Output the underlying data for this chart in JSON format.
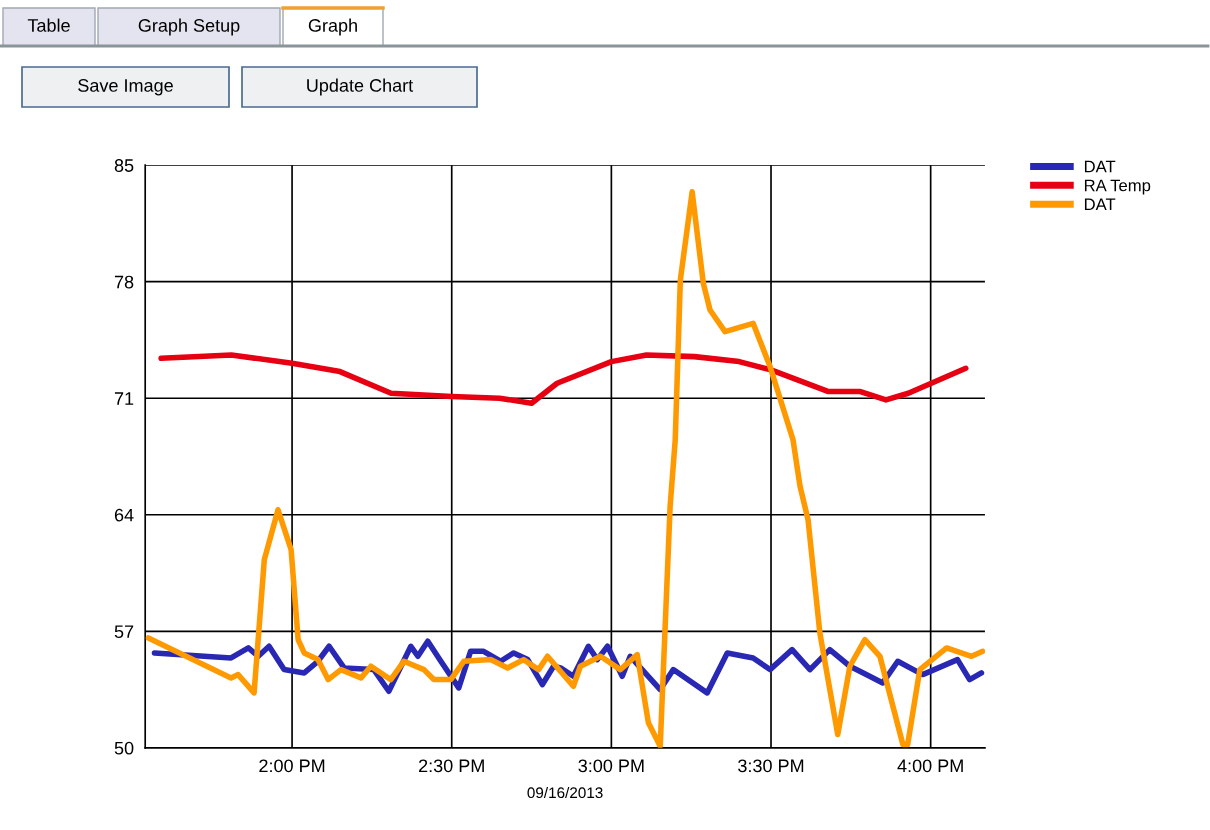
{
  "chart_data": {
    "type": "line",
    "xlabel": "09/16/2013",
    "annotations": [
      "Table",
      "Graph Setup",
      "Graph",
      "Save Image",
      "Update Chart"
    ],
    "xlim": [
      13.54,
      16.17
    ],
    "xticks": [
      {
        "value": 14,
        "label": "2:00 PM"
      },
      {
        "value": 14.5,
        "label": "2:30 PM"
      },
      {
        "value": 15,
        "label": "3:00 PM"
      },
      {
        "value": 15.5,
        "label": "3:30 PM"
      },
      {
        "value": 16,
        "label": "4:00 PM"
      }
    ],
    "ylim": [
      50,
      85
    ],
    "yticks": [
      50,
      57,
      64,
      71,
      78,
      85
    ],
    "grid": true,
    "legend": "top right",
    "marker": "none",
    "line_style": "solid",
    "series": [
      {
        "name": "DAT",
        "color": "#2828b4",
        "x": [
          13.569,
          13.809,
          13.863,
          13.894,
          13.928,
          13.975,
          14.038,
          14.081,
          14.116,
          14.163,
          14.256,
          14.303,
          14.372,
          14.394,
          14.425,
          14.466,
          14.522,
          14.559,
          14.6,
          14.653,
          14.694,
          14.738,
          14.784,
          14.819,
          14.841,
          14.881,
          14.928,
          14.956,
          14.988,
          15.034,
          15.059,
          15.153,
          15.194,
          15.3,
          15.363,
          15.444,
          15.497,
          15.566,
          15.622,
          15.684,
          15.747,
          15.809,
          15.85,
          15.897,
          15.975,
          16.084,
          16.122,
          16.159
        ],
        "values": [
          55.7,
          55.4,
          56.0,
          55.5,
          56.1,
          54.7,
          54.5,
          55.2,
          56.1,
          54.8,
          54.7,
          53.4,
          56.1,
          55.5,
          56.4,
          55.2,
          53.6,
          55.8,
          55.8,
          55.2,
          55.7,
          55.3,
          53.8,
          54.9,
          54.8,
          54.3,
          56.1,
          55.3,
          56.1,
          54.3,
          55.5,
          53.5,
          54.7,
          53.3,
          55.7,
          55.4,
          54.7,
          55.9,
          54.7,
          55.9,
          54.9,
          54.3,
          53.9,
          55.2,
          54.4,
          55.3,
          54.1,
          54.5
        ]
      },
      {
        "name": "RA Temp",
        "color": "#e60012",
        "x": [
          13.59,
          13.81,
          14.0,
          14.15,
          14.31,
          14.5,
          14.65,
          14.75,
          14.83,
          15.0,
          15.11,
          15.26,
          15.4,
          15.5,
          15.68,
          15.78,
          15.86,
          15.93,
          16.11
        ],
        "values": [
          73.4,
          73.6,
          73.1,
          72.6,
          71.3,
          71.1,
          71.0,
          70.7,
          71.9,
          73.2,
          73.6,
          73.5,
          73.2,
          72.7,
          71.4,
          71.4,
          70.9,
          71.3,
          72.8
        ]
      },
      {
        "name": "DAT",
        "color": "#ff9900",
        "x": [
          13.55,
          13.809,
          13.831,
          13.881,
          13.913,
          13.956,
          13.997,
          14.019,
          14.038,
          14.081,
          14.113,
          14.153,
          14.216,
          14.247,
          14.309,
          14.35,
          14.413,
          14.444,
          14.497,
          14.538,
          14.622,
          14.675,
          14.725,
          14.772,
          14.8,
          14.881,
          14.903,
          14.966,
          15.028,
          15.081,
          15.116,
          15.153,
          15.184,
          15.2,
          15.216,
          15.253,
          15.288,
          15.309,
          15.356,
          15.444,
          15.497,
          15.569,
          15.591,
          15.616,
          15.653,
          15.709,
          15.747,
          15.794,
          15.841,
          15.913,
          15.928,
          15.966,
          16.05,
          16.128,
          16.163
        ],
        "values": [
          56.6,
          54.2,
          54.4,
          53.3,
          61.3,
          64.3,
          61.9,
          56.5,
          55.7,
          55.3,
          54.1,
          54.7,
          54.2,
          54.9,
          54.1,
          55.2,
          54.7,
          54.1,
          54.1,
          55.2,
          55.3,
          54.8,
          55.3,
          54.7,
          55.5,
          53.7,
          54.9,
          55.5,
          54.7,
          55.6,
          51.5,
          50.1,
          64.5,
          68.5,
          78.1,
          83.4,
          77.9,
          76.3,
          75.0,
          75.5,
          72.9,
          68.5,
          65.7,
          63.7,
          56.9,
          50.8,
          54.9,
          56.5,
          55.5,
          50.2,
          50.2,
          54.7,
          56.0,
          55.5,
          55.8
        ]
      }
    ]
  }
}
